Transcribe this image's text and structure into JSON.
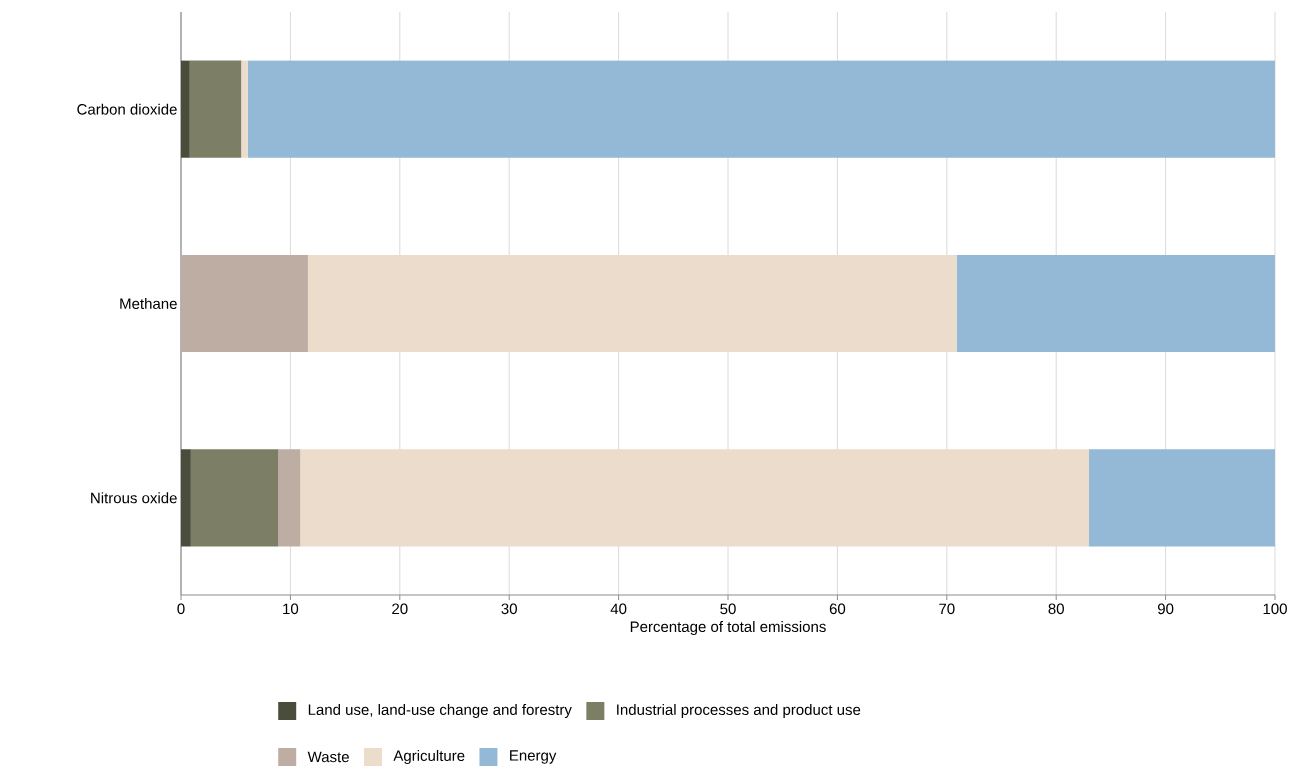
{
  "chart_data": {
    "type": "bar",
    "orientation": "horizontal",
    "stacked": true,
    "categories": [
      "Carbon dioxide",
      "Methane",
      "Nitrous oxide"
    ],
    "xlabel": "Percentage of total emissions",
    "xlim": [
      0,
      100
    ],
    "xticks": [
      0,
      10,
      20,
      30,
      40,
      50,
      60,
      70,
      80,
      90,
      100
    ],
    "grid": "x",
    "legend": "bottom",
    "series": [
      {
        "name": "Land use, land-use change and forestry",
        "color": "#4a4d3c",
        "values": [
          0.8,
          null,
          0.9
        ]
      },
      {
        "name": "Industrial processes and product use",
        "color": "#7c7f66",
        "values": [
          4.7,
          0,
          8.0
        ]
      },
      {
        "name": "Waste",
        "color": "#bdada3",
        "values": [
          0,
          11.6,
          2.0
        ]
      },
      {
        "name": "Agriculture",
        "color": "#ecdccc",
        "values": [
          0.6,
          59.3,
          72.1
        ]
      },
      {
        "name": "Energy",
        "color": "#93b9d7",
        "values": [
          93.9,
          29.1,
          17.0
        ]
      }
    ]
  }
}
